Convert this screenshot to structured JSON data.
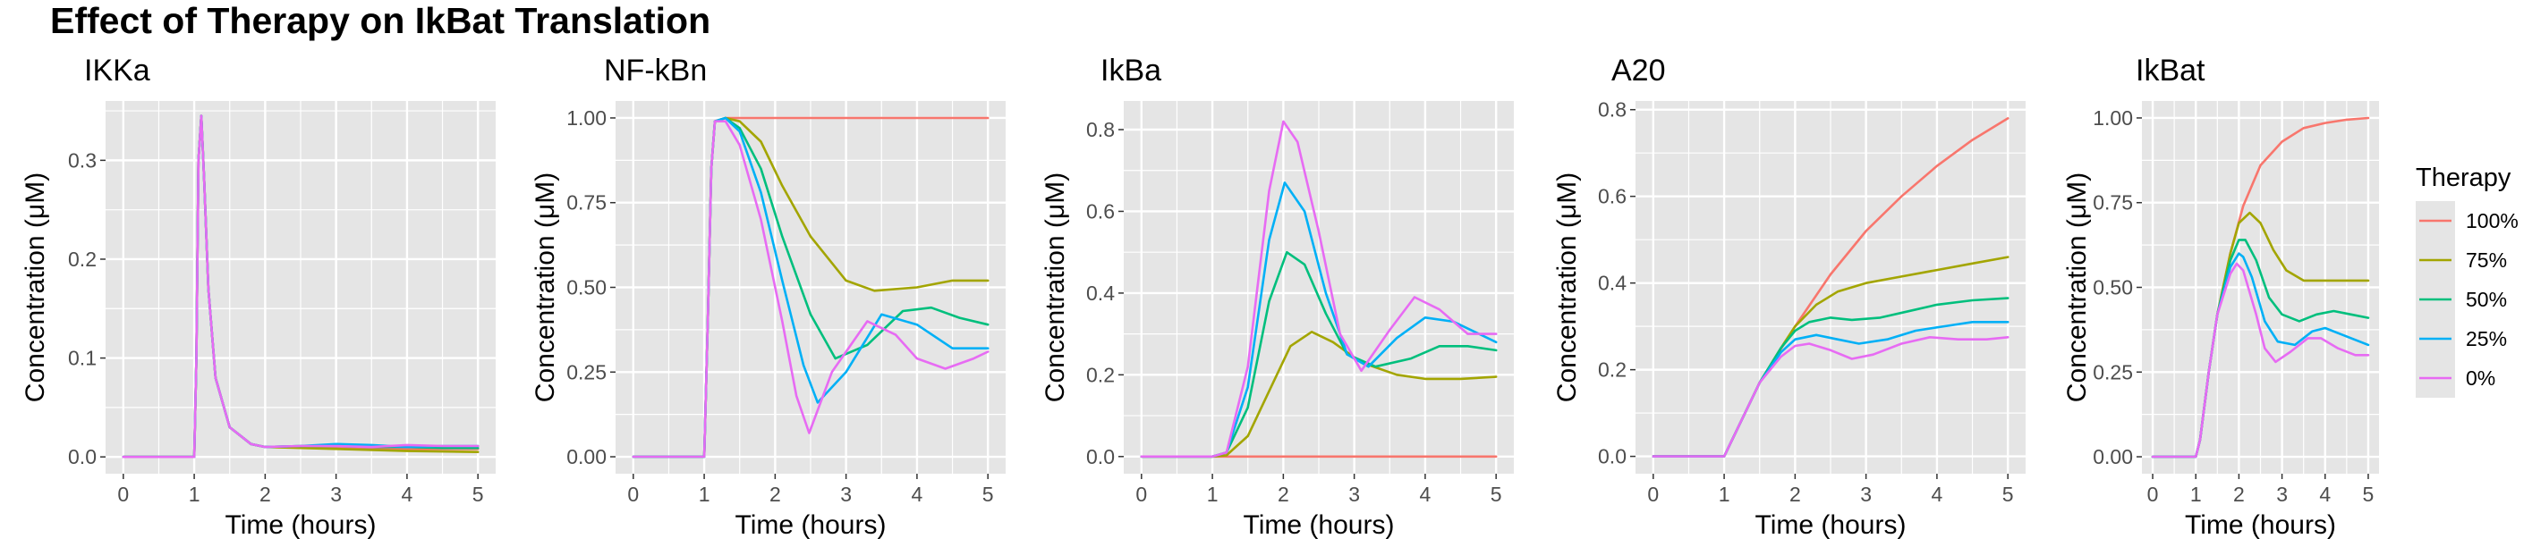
{
  "title": "Effect of Therapy on IkBat Translation",
  "legend": {
    "title": "Therapy",
    "position": "right"
  },
  "series_colors": {
    "100%": "#F8766D",
    "75%": "#A3A500",
    "50%": "#00BF7D",
    "25%": "#00B0F6",
    "0%": "#E76BF3"
  },
  "panel_background": "#E5E5E5",
  "grid_color": "#FFFFFF",
  "chart_data": [
    {
      "type": "line",
      "title": "IKKa",
      "xlabel": "Time (hours)",
      "ylabel": "Concentration (μM)",
      "xlim": [
        -0.25,
        5.25
      ],
      "ylim": [
        -0.017,
        0.36
      ],
      "xticks": [
        0,
        1,
        2,
        3,
        4,
        5
      ],
      "yticks": [
        0,
        0.1,
        0.2,
        0.3
      ],
      "ytick_labels": [
        "0.0",
        "0.1",
        "0.2",
        "0.3"
      ],
      "grid": true,
      "series": [
        {
          "name": "100%",
          "x": [
            0,
            1,
            1.03,
            1.06,
            1.1,
            1.14,
            1.2,
            1.3,
            1.5,
            1.8,
            2,
            3,
            4,
            5
          ],
          "y": [
            0,
            0,
            0.1,
            0.3,
            0.345,
            0.28,
            0.17,
            0.08,
            0.03,
            0.013,
            0.01,
            0.009,
            0.008,
            0.008
          ]
        },
        {
          "name": "75%",
          "x": [
            0,
            1,
            1.03,
            1.06,
            1.1,
            1.14,
            1.2,
            1.3,
            1.5,
            1.8,
            2,
            3,
            4,
            5
          ],
          "y": [
            0,
            0,
            0.1,
            0.3,
            0.345,
            0.28,
            0.17,
            0.08,
            0.03,
            0.013,
            0.01,
            0.008,
            0.006,
            0.005
          ]
        },
        {
          "name": "50%",
          "x": [
            0,
            1,
            1.03,
            1.06,
            1.1,
            1.14,
            1.2,
            1.3,
            1.5,
            1.8,
            2,
            2.5,
            3,
            3.5,
            4,
            4.5,
            5
          ],
          "y": [
            0,
            0,
            0.1,
            0.3,
            0.345,
            0.28,
            0.17,
            0.08,
            0.03,
            0.013,
            0.01,
            0.011,
            0.011,
            0.01,
            0.01,
            0.009,
            0.009
          ]
        },
        {
          "name": "25%",
          "x": [
            0,
            1,
            1.03,
            1.06,
            1.1,
            1.14,
            1.2,
            1.3,
            1.5,
            1.8,
            2,
            2.5,
            3,
            3.5,
            4,
            4.5,
            5
          ],
          "y": [
            0,
            0,
            0.1,
            0.3,
            0.345,
            0.28,
            0.17,
            0.08,
            0.03,
            0.013,
            0.01,
            0.011,
            0.013,
            0.012,
            0.01,
            0.011,
            0.011
          ]
        },
        {
          "name": "0%",
          "x": [
            0,
            1,
            1.03,
            1.06,
            1.1,
            1.14,
            1.2,
            1.3,
            1.5,
            1.8,
            2,
            2.5,
            3,
            3.5,
            4,
            4.5,
            5
          ],
          "y": [
            0,
            0,
            0.1,
            0.3,
            0.345,
            0.28,
            0.17,
            0.08,
            0.03,
            0.013,
            0.01,
            0.011,
            0.011,
            0.01,
            0.012,
            0.011,
            0.011
          ]
        }
      ]
    },
    {
      "type": "line",
      "title": "NF-kBn",
      "xlabel": "Time (hours)",
      "ylabel": "Concentration (μM)",
      "xlim": [
        -0.25,
        5.25
      ],
      "ylim": [
        -0.05,
        1.05
      ],
      "xticks": [
        0,
        1,
        2,
        3,
        4,
        5
      ],
      "yticks": [
        0,
        0.25,
        0.5,
        0.75,
        1.0
      ],
      "ytick_labels": [
        "0.00",
        "0.25",
        "0.50",
        "0.75",
        "1.00"
      ],
      "grid": true,
      "series": [
        {
          "name": "100%",
          "x": [
            0,
            1,
            1.05,
            1.1,
            1.15,
            1.3,
            2,
            3,
            4,
            5
          ],
          "y": [
            0,
            0,
            0.4,
            0.85,
            0.99,
            1.0,
            1.0,
            1.0,
            1.0,
            1.0
          ]
        },
        {
          "name": "75%",
          "x": [
            0,
            1,
            1.05,
            1.1,
            1.15,
            1.3,
            1.5,
            1.8,
            2.1,
            2.5,
            3,
            3.4,
            4,
            4.5,
            5
          ],
          "y": [
            0,
            0,
            0.4,
            0.85,
            0.99,
            1.0,
            0.99,
            0.93,
            0.8,
            0.65,
            0.52,
            0.49,
            0.5,
            0.52,
            0.52
          ]
        },
        {
          "name": "50%",
          "x": [
            0,
            1,
            1.05,
            1.1,
            1.15,
            1.3,
            1.5,
            1.8,
            2.1,
            2.5,
            2.85,
            3.3,
            3.8,
            4.2,
            4.6,
            5
          ],
          "y": [
            0,
            0,
            0.4,
            0.85,
            0.99,
            1.0,
            0.97,
            0.85,
            0.65,
            0.42,
            0.29,
            0.33,
            0.43,
            0.44,
            0.41,
            0.39
          ]
        },
        {
          "name": "25%",
          "x": [
            0,
            1,
            1.05,
            1.1,
            1.15,
            1.3,
            1.5,
            1.8,
            2.1,
            2.4,
            2.6,
            3,
            3.5,
            4,
            4.5,
            5
          ],
          "y": [
            0,
            0,
            0.4,
            0.85,
            0.99,
            1.0,
            0.96,
            0.78,
            0.52,
            0.27,
            0.16,
            0.25,
            0.42,
            0.39,
            0.32,
            0.32
          ]
        },
        {
          "name": "0%",
          "x": [
            0,
            1,
            1.05,
            1.1,
            1.15,
            1.3,
            1.5,
            1.8,
            2.1,
            2.3,
            2.48,
            2.8,
            3.3,
            3.7,
            4,
            4.4,
            4.8,
            5
          ],
          "y": [
            0,
            0,
            0.4,
            0.85,
            0.99,
            0.99,
            0.92,
            0.7,
            0.4,
            0.18,
            0.07,
            0.25,
            0.4,
            0.36,
            0.29,
            0.26,
            0.29,
            0.31
          ]
        }
      ]
    },
    {
      "type": "line",
      "title": "IkBa",
      "xlabel": "Time (hours)",
      "ylabel": "Concentration (μM)",
      "xlim": [
        -0.25,
        5.25
      ],
      "ylim": [
        -0.042,
        0.87
      ],
      "xticks": [
        0,
        1,
        2,
        3,
        4,
        5
      ],
      "yticks": [
        0,
        0.2,
        0.4,
        0.6,
        0.8
      ],
      "ytick_labels": [
        "0.0",
        "0.2",
        "0.4",
        "0.6",
        "0.8"
      ],
      "grid": true,
      "series": [
        {
          "name": "100%",
          "x": [
            0,
            5
          ],
          "y": [
            0,
            0
          ]
        },
        {
          "name": "75%",
          "x": [
            0,
            1,
            1.2,
            1.5,
            1.8,
            2.1,
            2.4,
            2.7,
            3.1,
            3.6,
            4,
            4.5,
            5
          ],
          "y": [
            0,
            0,
            0.003,
            0.05,
            0.16,
            0.27,
            0.305,
            0.28,
            0.23,
            0.2,
            0.19,
            0.19,
            0.195
          ]
        },
        {
          "name": "50%",
          "x": [
            0,
            1,
            1.2,
            1.5,
            1.8,
            2.05,
            2.3,
            2.6,
            2.9,
            3.3,
            3.8,
            4.2,
            4.6,
            5
          ],
          "y": [
            0,
            0,
            0.01,
            0.12,
            0.38,
            0.5,
            0.47,
            0.35,
            0.25,
            0.22,
            0.24,
            0.27,
            0.27,
            0.26
          ]
        },
        {
          "name": "25%",
          "x": [
            0,
            1,
            1.2,
            1.5,
            1.8,
            2.02,
            2.3,
            2.6,
            2.9,
            3.2,
            3.6,
            4,
            4.4,
            5
          ],
          "y": [
            0,
            0,
            0.01,
            0.17,
            0.53,
            0.67,
            0.6,
            0.4,
            0.25,
            0.22,
            0.29,
            0.34,
            0.33,
            0.28
          ]
        },
        {
          "name": "0%",
          "x": [
            0,
            1,
            1.2,
            1.5,
            1.8,
            2.0,
            2.2,
            2.5,
            2.8,
            3.1,
            3.5,
            3.85,
            4.2,
            4.6,
            5
          ],
          "y": [
            0,
            0,
            0.01,
            0.22,
            0.65,
            0.82,
            0.77,
            0.55,
            0.3,
            0.21,
            0.31,
            0.39,
            0.36,
            0.3,
            0.3
          ]
        }
      ]
    },
    {
      "type": "line",
      "title": "A20",
      "xlabel": "Time (hours)",
      "ylabel": "Concentration (μM)",
      "xlim": [
        -0.25,
        5.25
      ],
      "ylim": [
        -0.04,
        0.82
      ],
      "xticks": [
        0,
        1,
        2,
        3,
        4,
        5
      ],
      "yticks": [
        0,
        0.2,
        0.4,
        0.6,
        0.8
      ],
      "ytick_labels": [
        "0.0",
        "0.2",
        "0.4",
        "0.6",
        "0.8"
      ],
      "grid": true,
      "series": [
        {
          "name": "100%",
          "x": [
            0,
            1,
            1.5,
            2,
            2.5,
            3,
            3.5,
            4,
            4.5,
            5
          ],
          "y": [
            0,
            0,
            0.17,
            0.3,
            0.42,
            0.52,
            0.6,
            0.67,
            0.73,
            0.78
          ]
        },
        {
          "name": "75%",
          "x": [
            0,
            1,
            1.5,
            1.8,
            2,
            2.3,
            2.6,
            3,
            3.5,
            4,
            4.5,
            5
          ],
          "y": [
            0,
            0,
            0.17,
            0.25,
            0.3,
            0.35,
            0.38,
            0.4,
            0.415,
            0.43,
            0.445,
            0.46
          ]
        },
        {
          "name": "50%",
          "x": [
            0,
            1,
            1.5,
            1.8,
            2,
            2.2,
            2.5,
            2.8,
            3.2,
            3.6,
            4,
            4.5,
            5
          ],
          "y": [
            0,
            0,
            0.17,
            0.25,
            0.29,
            0.31,
            0.32,
            0.315,
            0.32,
            0.335,
            0.35,
            0.36,
            0.365
          ]
        },
        {
          "name": "25%",
          "x": [
            0,
            1,
            1.5,
            1.8,
            2,
            2.3,
            2.6,
            2.9,
            3.3,
            3.7,
            4.1,
            4.5,
            5
          ],
          "y": [
            0,
            0,
            0.17,
            0.24,
            0.27,
            0.28,
            0.27,
            0.26,
            0.27,
            0.29,
            0.3,
            0.31,
            0.31
          ]
        },
        {
          "name": "0%",
          "x": [
            0,
            1,
            1.5,
            1.8,
            2,
            2.2,
            2.5,
            2.8,
            3.1,
            3.5,
            3.9,
            4.3,
            4.7,
            5
          ],
          "y": [
            0,
            0,
            0.17,
            0.23,
            0.255,
            0.26,
            0.245,
            0.225,
            0.235,
            0.26,
            0.275,
            0.27,
            0.27,
            0.275
          ]
        }
      ]
    },
    {
      "type": "line",
      "title": "IkBat",
      "xlabel": "Time (hours)",
      "ylabel": "Concentration (μM)",
      "xlim": [
        -0.25,
        5.25
      ],
      "ylim": [
        -0.05,
        1.05
      ],
      "xticks": [
        0,
        1,
        2,
        3,
        4,
        5
      ],
      "yticks": [
        0,
        0.25,
        0.5,
        0.75,
        1.0
      ],
      "ytick_labels": [
        "0.00",
        "0.25",
        "0.50",
        "0.75",
        "1.00"
      ],
      "grid": true,
      "series": [
        {
          "name": "100%",
          "x": [
            0,
            1,
            1.1,
            1.3,
            1.5,
            1.8,
            2.1,
            2.5,
            3,
            3.5,
            4,
            4.5,
            5
          ],
          "y": [
            0,
            0,
            0.05,
            0.25,
            0.42,
            0.6,
            0.74,
            0.86,
            0.93,
            0.97,
            0.985,
            0.995,
            1.0
          ]
        },
        {
          "name": "75%",
          "x": [
            0,
            1,
            1.1,
            1.3,
            1.5,
            1.8,
            2.0,
            2.25,
            2.5,
            2.8,
            3.1,
            3.5,
            4,
            4.5,
            5
          ],
          "y": [
            0,
            0,
            0.05,
            0.25,
            0.42,
            0.6,
            0.69,
            0.72,
            0.69,
            0.61,
            0.55,
            0.52,
            0.52,
            0.52,
            0.52
          ]
        },
        {
          "name": "50%",
          "x": [
            0,
            1,
            1.1,
            1.3,
            1.5,
            1.8,
            2.0,
            2.15,
            2.4,
            2.7,
            3.0,
            3.4,
            3.8,
            4.2,
            4.6,
            5
          ],
          "y": [
            0,
            0,
            0.05,
            0.25,
            0.42,
            0.58,
            0.64,
            0.64,
            0.58,
            0.47,
            0.42,
            0.4,
            0.42,
            0.43,
            0.42,
            0.41
          ]
        },
        {
          "name": "25%",
          "x": [
            0,
            1,
            1.1,
            1.3,
            1.5,
            1.8,
            2.0,
            2.1,
            2.3,
            2.6,
            2.9,
            3.3,
            3.7,
            4.0,
            4.4,
            5
          ],
          "y": [
            0,
            0,
            0.05,
            0.25,
            0.42,
            0.56,
            0.6,
            0.59,
            0.53,
            0.4,
            0.34,
            0.33,
            0.37,
            0.38,
            0.36,
            0.33
          ]
        },
        {
          "name": "0%",
          "x": [
            0,
            1,
            1.1,
            1.3,
            1.5,
            1.8,
            1.95,
            2.1,
            2.4,
            2.6,
            2.85,
            3.2,
            3.6,
            3.9,
            4.3,
            4.7,
            5
          ],
          "y": [
            0,
            0,
            0.05,
            0.25,
            0.42,
            0.54,
            0.57,
            0.55,
            0.42,
            0.32,
            0.28,
            0.31,
            0.35,
            0.35,
            0.32,
            0.3,
            0.3
          ]
        }
      ]
    }
  ]
}
